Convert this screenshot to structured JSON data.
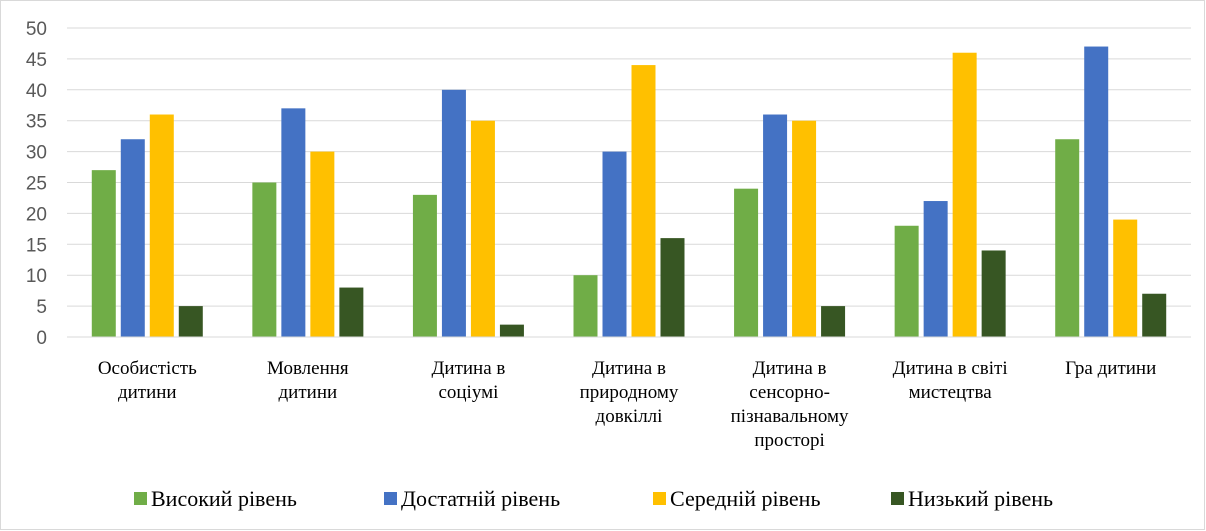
{
  "chart_data": {
    "type": "bar",
    "categories": [
      [
        "Особистість",
        "дитини"
      ],
      [
        "Мовлення",
        "дитини"
      ],
      [
        "Дитина в",
        "соціумі"
      ],
      [
        "Дитина в",
        "природному",
        "довкіллі"
      ],
      [
        "Дитина в",
        "сенсорно-",
        "пізнавальному",
        "просторі"
      ],
      [
        "Дитина в світі",
        "мистецтва"
      ],
      [
        "Гра дитини"
      ]
    ],
    "series": [
      {
        "name": "Високий рівень",
        "color": "#70ad47",
        "values": [
          27,
          25,
          23,
          10,
          24,
          18,
          32
        ]
      },
      {
        "name": "Достатній рівень",
        "color": "#4472c4",
        "values": [
          32,
          37,
          40,
          30,
          36,
          22,
          47
        ]
      },
      {
        "name": "Середній рівень",
        "color": "#ffc000",
        "values": [
          36,
          30,
          35,
          44,
          35,
          46,
          19
        ]
      },
      {
        "name": "Низький рівень",
        "color": "#375623",
        "values": [
          5,
          8,
          2,
          16,
          5,
          14,
          7
        ]
      }
    ],
    "ylim": [
      0,
      50
    ],
    "yticks": [
      0,
      5,
      10,
      15,
      20,
      25,
      30,
      35,
      40,
      45,
      50
    ],
    "grid": true,
    "legend": "bottom"
  }
}
